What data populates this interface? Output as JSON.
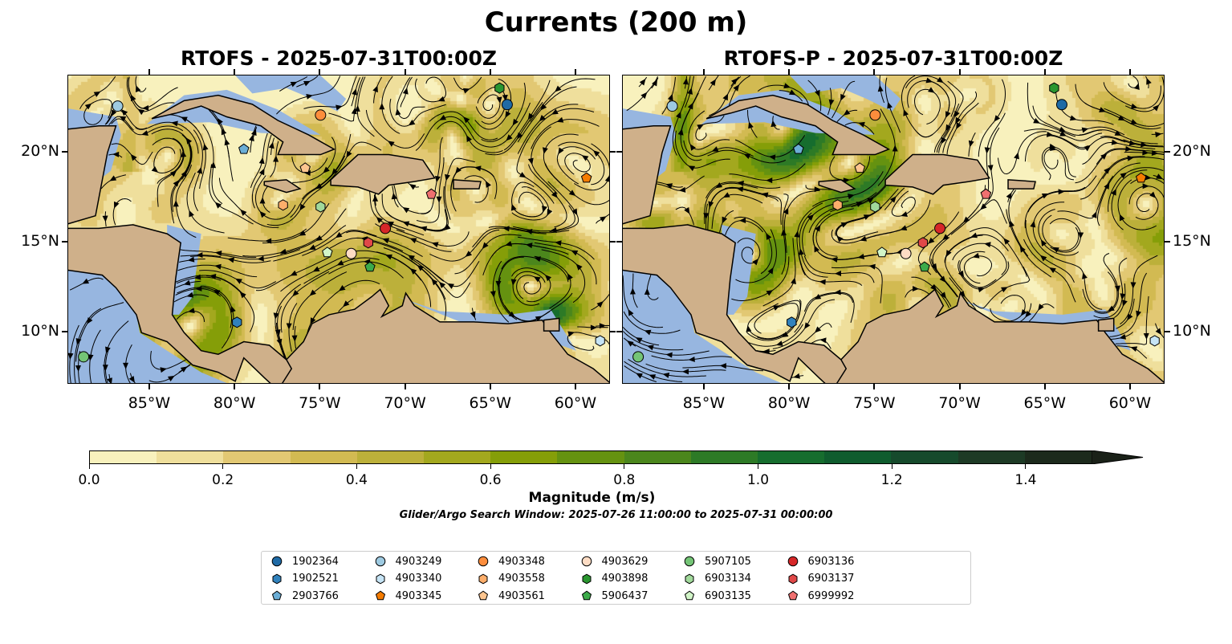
{
  "figure": {
    "title": "Currents (200 m)",
    "panels": [
      {
        "title": "RTOFS - 2025-07-31T00:00Z",
        "seed": 7
      },
      {
        "title": "RTOFS-P - 2025-07-31T00:00Z",
        "seed": 23
      }
    ],
    "lon_ticks": [
      {
        "value": -85,
        "label": "85°W"
      },
      {
        "value": -80,
        "label": "80°W"
      },
      {
        "value": -75,
        "label": "75°W"
      },
      {
        "value": -70,
        "label": "70°W"
      },
      {
        "value": -65,
        "label": "65°W"
      },
      {
        "value": -60,
        "label": "60°W"
      }
    ],
    "lat_ticks": [
      {
        "value": 20,
        "label": "20°N"
      },
      {
        "value": 15,
        "label": "15°N"
      },
      {
        "value": 10,
        "label": "10°N"
      }
    ],
    "colorbar": {
      "label": "Magnitude (m/s)",
      "ticks": [
        "0.0",
        "0.2",
        "0.4",
        "0.6",
        "0.8",
        "1.0",
        "1.2",
        "1.4"
      ],
      "colors": [
        "#f8f1bd",
        "#efdf9c",
        "#e2c873",
        "#d2ba52",
        "#bcb03a",
        "#a3a81e",
        "#859e08",
        "#659210",
        "#4b861c",
        "#2d7a26",
        "#166d2e",
        "#0f5c2e",
        "#164a2c",
        "#1d3a25",
        "#1c2a1c"
      ],
      "extend_color": "#1a2118"
    },
    "caption": "Glider/Argo Search Window: 2025-07-26 11:00:00 to 2025-07-31 00:00:00",
    "land_color": "#cfb08a",
    "shallow_color": "#97b6e0"
  },
  "chart_data": {
    "type": "map",
    "title": "Currents (200 m)",
    "extent": {
      "lon": [
        -89.8,
        -58.0
      ],
      "lat": [
        7.0,
        24.3
      ]
    },
    "colorbar_range": [
      0,
      1.5
    ],
    "platforms": [
      {
        "id": "1902364",
        "marker": "circle",
        "color": "#1f6aa5",
        "lon": -64.05,
        "lat": 22.68
      },
      {
        "id": "1902521",
        "marker": "hexagon",
        "color": "#3182bd",
        "lon": -79.9,
        "lat": 10.58
      },
      {
        "id": "2903766",
        "marker": "pentagon",
        "color": "#6baed6",
        "lon": -79.5,
        "lat": 20.2
      },
      {
        "id": "4903249",
        "marker": "circle",
        "color": "#9ecae1",
        "lon": -86.9,
        "lat": 22.6
      },
      {
        "id": "4903340",
        "marker": "hexagon",
        "color": "#c6e4f5",
        "lon": -58.6,
        "lat": 9.55
      },
      {
        "id": "4903345",
        "marker": "pentagon",
        "color": "#f57c00",
        "lon": -59.4,
        "lat": 18.6
      },
      {
        "id": "4903348",
        "marker": "circle",
        "color": "#fd8d3c",
        "lon": -75.0,
        "lat": 22.1
      },
      {
        "id": "4903558",
        "marker": "hexagon",
        "color": "#fdae6b",
        "lon": -77.2,
        "lat": 17.1
      },
      {
        "id": "4903561",
        "marker": "pentagon",
        "color": "#fdc58f",
        "lon": -75.9,
        "lat": 19.15
      },
      {
        "id": "4903629",
        "marker": "circle",
        "color": "#fddcc4",
        "lon": -73.2,
        "lat": 14.4
      },
      {
        "id": "4903898",
        "marker": "hexagon",
        "color": "#2a9630",
        "lon": -64.5,
        "lat": 23.6
      },
      {
        "id": "5906437",
        "marker": "pentagon",
        "color": "#3cab4a",
        "lon": -72.1,
        "lat": 13.65
      },
      {
        "id": "5907105",
        "marker": "circle",
        "color": "#74c476",
        "lon": -88.9,
        "lat": 8.66
      },
      {
        "id": "6903134",
        "marker": "hexagon",
        "color": "#a1d99b",
        "lon": -75.0,
        "lat": 17.0
      },
      {
        "id": "6903135",
        "marker": "pentagon",
        "color": "#d2f5c8",
        "lon": -74.6,
        "lat": 14.46
      },
      {
        "id": "6903136",
        "marker": "circle",
        "color": "#d62728",
        "lon": -71.2,
        "lat": 15.8
      },
      {
        "id": "6903137",
        "marker": "hexagon",
        "color": "#e04848",
        "lon": -72.2,
        "lat": 15.0
      },
      {
        "id": "6999992",
        "marker": "pentagon",
        "color": "#f07070",
        "lon": -68.5,
        "lat": 17.7
      }
    ]
  }
}
